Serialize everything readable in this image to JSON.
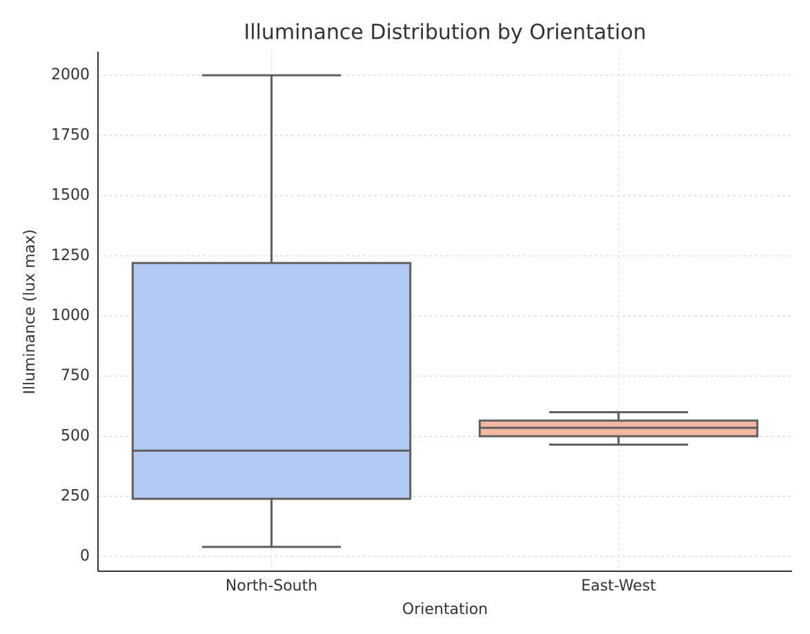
{
  "chart_data": {
    "type": "box",
    "title": "Illuminance Distribution by Orientation",
    "x_label": "Orientation",
    "y_label": "Illuminance (lux max)",
    "categories": [
      "North-South",
      "East-West"
    ],
    "boxes": [
      {
        "whisker_low": 40,
        "q1": 240,
        "median": 440,
        "q3": 1220,
        "whisker_high": 2000,
        "color": "#b3c8f2"
      },
      {
        "whisker_low": 465,
        "q1": 500,
        "median": 535,
        "q3": 565,
        "whisker_high": 600,
        "color": "#f2b8a0"
      }
    ],
    "ylim": [
      -61,
      2098
    ],
    "yticks": [
      0,
      250,
      500,
      750,
      1000,
      1250,
      1500,
      1750,
      2000
    ],
    "grid": true
  }
}
